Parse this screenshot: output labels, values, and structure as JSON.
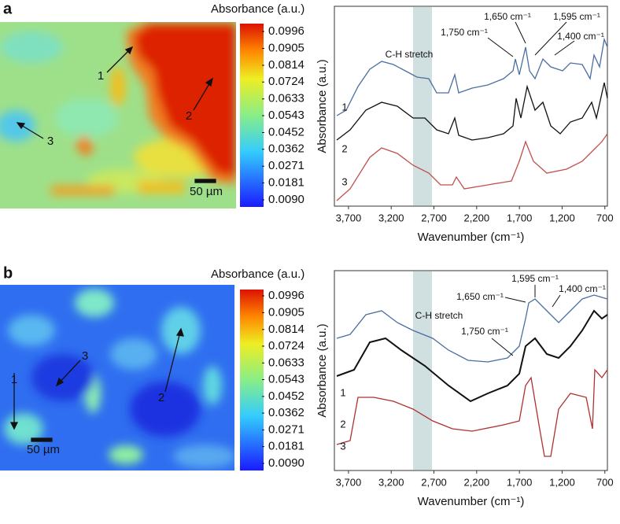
{
  "chart_data": [
    {
      "type": "heatmap",
      "panel": "a",
      "colorbar_label": "Absorbance (a.u.)",
      "clim": [
        0.009,
        0.0996
      ],
      "colorbar_ticks": [
        0.0996,
        0.0905,
        0.0814,
        0.0724,
        0.0633,
        0.0543,
        0.0452,
        0.0362,
        0.0271,
        0.0181,
        {
          "value": 0.009,
          "label": "0.0090"
        }
      ],
      "annotations": [
        "1",
        "2",
        "3",
        "50 µm"
      ]
    },
    {
      "type": "line",
      "xlabel": "Wavenumber (cm⁻¹)",
      "ylabel": "Absorbance (a.u.)",
      "xlim": [
        3865,
        670
      ],
      "xticks": [
        {
          "value": 3700,
          "label": "3,700"
        },
        {
          "value": 3200,
          "label": "3,200"
        },
        {
          "value": 2700,
          "label": "2,700"
        },
        {
          "value": 2200,
          "label": "2,200"
        },
        {
          "value": 1700,
          "label": "1,700"
        },
        {
          "value": 1200,
          "label": "1,200"
        },
        700
      ],
      "curve_labels": [
        "1",
        "2",
        "3"
      ],
      "annotations": [
        "C-H stretch",
        "1,750 cm⁻¹",
        "1,650 cm⁻¹",
        "1,595 cm⁻¹",
        "1,400 cm⁻¹"
      ]
    },
    {
      "type": "heatmap",
      "panel": "b",
      "colorbar_label": "Absorbance (a.u.)",
      "clim": [
        0.009,
        0.0996
      ],
      "colorbar_ticks": [
        0.0996,
        0.0905,
        0.0814,
        0.0724,
        0.0633,
        0.0543,
        0.0452,
        0.0362,
        0.0271,
        0.0181,
        {
          "value": 0.009,
          "label": "0.0090"
        }
      ],
      "annotations": [
        "1",
        "2",
        "3",
        "50 µm"
      ]
    },
    {
      "type": "line",
      "xlabel": "Wavenumber (cm⁻¹)",
      "ylabel": "Absorbance (a.u.)",
      "xlim": [
        3865,
        670
      ],
      "xticks": [
        {
          "value": 3700,
          "label": "3,700"
        },
        {
          "value": 3200,
          "label": "3,200"
        },
        {
          "value": 2700,
          "label": "2,700"
        },
        {
          "value": 2200,
          "label": "2,200"
        },
        {
          "value": 1700,
          "label": "1,700"
        },
        {
          "value": 1200,
          "label": "1,200"
        },
        700
      ],
      "curve_labels": [
        "1",
        "2",
        "3"
      ],
      "annotations": [
        "C-H stretch",
        "1,750 cm⁻¹",
        "1,650 cm⁻¹",
        "1,595 cm⁻¹",
        "1,400 cm⁻¹"
      ]
    }
  ]
}
